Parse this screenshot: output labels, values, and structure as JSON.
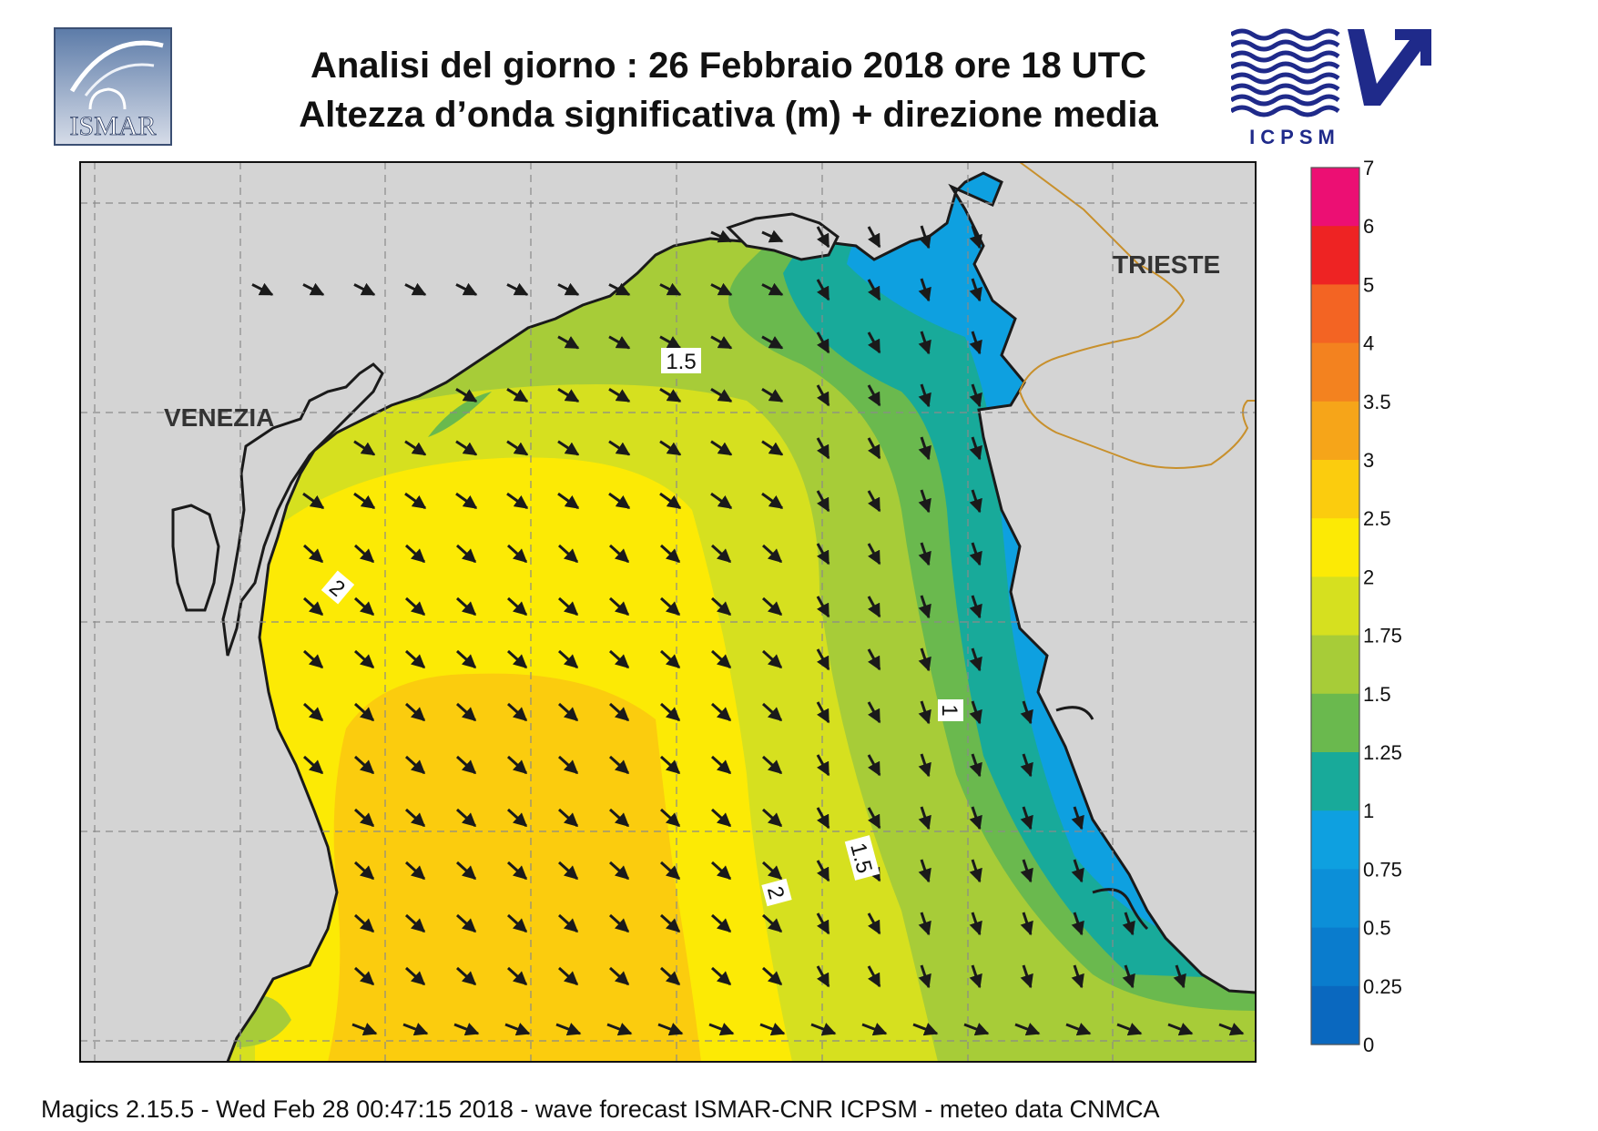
{
  "header": {
    "title_line1": "Analisi del giorno :  26  Febbraio 2018   ore 18 UTC",
    "title_line2": "Altezza d’onda significativa (m) + direzione media"
  },
  "logos": {
    "left": "ISMAR",
    "right": "ICPSM"
  },
  "map": {
    "place_labels": [
      "VENEZIA",
      "TRIESTE"
    ],
    "contour_labels": [
      "1.5",
      "2",
      "1",
      "1.5",
      "2"
    ],
    "land_color": "#d4d4d4",
    "coast_color": "#1a1a1a",
    "border_color": "#c8902c",
    "grid_color": "#8a8a8a",
    "arrow_color": "#1a1a1a",
    "arrow_direction": "south-west",
    "wave_field_max_region": "central-west (2.5–3 m)",
    "wave_field_min_region": "north-east near Trieste (0.5–1 m)"
  },
  "legend": {
    "labels": [
      "7",
      "6",
      "5",
      "4",
      "3.5",
      "3",
      "2.5",
      "2",
      "1.75",
      "1.5",
      "1.25",
      "1",
      "0.75",
      "0.5",
      "0.25",
      "0"
    ],
    "colors": [
      "#ec0f73",
      "#ee2323",
      "#f36423",
      "#f3821f",
      "#f6a519",
      "#fbcc0e",
      "#fcea05",
      "#d6e01f",
      "#a7cc38",
      "#6ab94e",
      "#18aa9a",
      "#0ea0e0",
      "#0c8fd8",
      "#0a7ccd",
      "#0a68bf"
    ]
  },
  "footer": "Magics 2.15.5 - Wed Feb 28 00:47:15 2018 - wave forecast  ISMAR-CNR  ICPSM - meteo data   CNMCA"
}
